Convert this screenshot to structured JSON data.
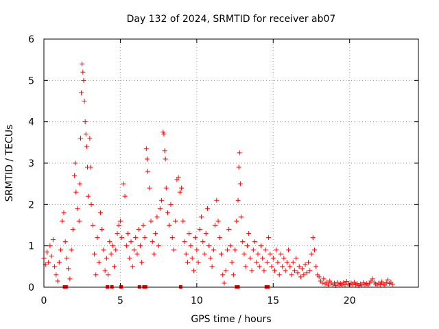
{
  "chart_data": {
    "type": "scatter",
    "title": "Day 132 of 2024, SRMTID for receiver ab07",
    "xlabel": "GPS time / hours",
    "ylabel": "SRMTID / TECUs",
    "xlim": [
      0,
      24.5
    ],
    "ylim": [
      0,
      6
    ],
    "x_ticks": [
      0,
      5,
      10,
      15,
      20
    ],
    "y_ticks": [
      0,
      1,
      2,
      3,
      4,
      5,
      6
    ],
    "grid": true,
    "marker": "+",
    "series": [
      {
        "name": "SRMTID",
        "color": "#ff0000",
        "points": [
          [
            0.0,
            0.7
          ],
          [
            0.1,
            0.55
          ],
          [
            0.2,
            0.85
          ],
          [
            0.3,
            0.6
          ],
          [
            0.4,
            1.0
          ],
          [
            0.5,
            0.75
          ],
          [
            0.6,
            1.15
          ],
          [
            0.7,
            0.5
          ],
          [
            0.8,
            0.3
          ],
          [
            0.9,
            0.15
          ],
          [
            1.0,
            0.6
          ],
          [
            1.1,
            0.9
          ],
          [
            1.2,
            1.6
          ],
          [
            1.3,
            1.8
          ],
          [
            1.4,
            1.1
          ],
          [
            1.5,
            0.7
          ],
          [
            1.6,
            0.45
          ],
          [
            1.7,
            0.2
          ],
          [
            1.8,
            0.9
          ],
          [
            1.9,
            1.4
          ],
          [
            2.0,
            2.7
          ],
          [
            2.05,
            3.0
          ],
          [
            2.1,
            2.3
          ],
          [
            2.2,
            1.9
          ],
          [
            2.3,
            1.6
          ],
          [
            2.35,
            2.5
          ],
          [
            2.4,
            3.6
          ],
          [
            2.45,
            4.7
          ],
          [
            2.5,
            5.4
          ],
          [
            2.55,
            5.2
          ],
          [
            2.6,
            5.0
          ],
          [
            2.65,
            4.5
          ],
          [
            2.7,
            4.0
          ],
          [
            2.75,
            3.7
          ],
          [
            2.8,
            3.4
          ],
          [
            2.85,
            2.9
          ],
          [
            2.9,
            2.2
          ],
          [
            3.0,
            3.6
          ],
          [
            3.05,
            2.9
          ],
          [
            3.1,
            2.0
          ],
          [
            3.2,
            1.5
          ],
          [
            3.3,
            0.8
          ],
          [
            3.4,
            0.3
          ],
          [
            3.5,
            1.2
          ],
          [
            3.6,
            0.6
          ],
          [
            3.7,
            1.8
          ],
          [
            3.8,
            1.4
          ],
          [
            3.9,
            0.9
          ],
          [
            4.0,
            0.4
          ],
          [
            4.1,
            0.7
          ],
          [
            4.2,
            0.3
          ],
          [
            4.3,
            1.1
          ],
          [
            4.4,
            0.8
          ],
          [
            4.5,
            1.0
          ],
          [
            4.6,
            0.5
          ],
          [
            4.7,
            0.9
          ],
          [
            4.8,
            1.3
          ],
          [
            4.9,
            1.5
          ],
          [
            5.0,
            1.6
          ],
          [
            5.1,
            1.2
          ],
          [
            5.2,
            2.5
          ],
          [
            5.3,
            2.2
          ],
          [
            5.4,
            1.0
          ],
          [
            5.5,
            1.3
          ],
          [
            5.6,
            0.7
          ],
          [
            5.7,
            1.1
          ],
          [
            5.8,
            0.5
          ],
          [
            5.9,
            0.9
          ],
          [
            6.0,
            1.2
          ],
          [
            6.1,
            0.8
          ],
          [
            6.2,
            1.4
          ],
          [
            6.3,
            1.0
          ],
          [
            6.4,
            0.6
          ],
          [
            6.5,
            1.5
          ],
          [
            6.6,
            1.2
          ],
          [
            6.7,
            3.35
          ],
          [
            6.75,
            3.1
          ],
          [
            6.8,
            2.8
          ],
          [
            6.9,
            2.4
          ],
          [
            7.0,
            1.6
          ],
          [
            7.1,
            1.1
          ],
          [
            7.2,
            0.8
          ],
          [
            7.3,
            1.3
          ],
          [
            7.4,
            1.7
          ],
          [
            7.5,
            1.0
          ],
          [
            7.6,
            1.9
          ],
          [
            7.7,
            2.1
          ],
          [
            7.8,
            3.75
          ],
          [
            7.85,
            3.7
          ],
          [
            7.9,
            3.3
          ],
          [
            7.95,
            3.1
          ],
          [
            8.0,
            2.4
          ],
          [
            8.1,
            1.8
          ],
          [
            8.2,
            1.5
          ],
          [
            8.3,
            2.0
          ],
          [
            8.4,
            1.2
          ],
          [
            8.5,
            0.9
          ],
          [
            8.6,
            1.6
          ],
          [
            8.7,
            2.6
          ],
          [
            8.8,
            2.65
          ],
          [
            8.9,
            2.3
          ],
          [
            9.0,
            2.4
          ],
          [
            9.1,
            1.6
          ],
          [
            9.2,
            1.1
          ],
          [
            9.3,
            0.8
          ],
          [
            9.4,
            0.6
          ],
          [
            9.5,
            1.3
          ],
          [
            9.6,
            1.0
          ],
          [
            9.7,
            0.7
          ],
          [
            9.8,
            0.4
          ],
          [
            9.9,
            1.2
          ],
          [
            10.0,
            0.9
          ],
          [
            10.1,
            0.6
          ],
          [
            10.2,
            1.4
          ],
          [
            10.3,
            1.7
          ],
          [
            10.4,
            1.1
          ],
          [
            10.5,
            0.8
          ],
          [
            10.6,
            1.3
          ],
          [
            10.7,
            1.9
          ],
          [
            10.8,
            1.0
          ],
          [
            10.9,
            0.7
          ],
          [
            11.0,
            0.5
          ],
          [
            11.1,
            0.9
          ],
          [
            11.2,
            1.5
          ],
          [
            11.3,
            2.1
          ],
          [
            11.4,
            1.6
          ],
          [
            11.5,
            1.2
          ],
          [
            11.6,
            0.8
          ],
          [
            11.7,
            0.3
          ],
          [
            11.8,
            0.1
          ],
          [
            11.9,
            0.4
          ],
          [
            12.0,
            0.9
          ],
          [
            12.1,
            1.4
          ],
          [
            12.2,
            1.0
          ],
          [
            12.3,
            0.6
          ],
          [
            12.4,
            0.3
          ],
          [
            12.5,
            0.9
          ],
          [
            12.6,
            1.6
          ],
          [
            12.7,
            2.1
          ],
          [
            12.75,
            2.9
          ],
          [
            12.8,
            3.25
          ],
          [
            12.85,
            2.5
          ],
          [
            12.9,
            1.7
          ],
          [
            13.0,
            1.1
          ],
          [
            13.1,
            0.8
          ],
          [
            13.2,
            0.5
          ],
          [
            13.3,
            1.0
          ],
          [
            13.4,
            1.3
          ],
          [
            13.5,
            0.7
          ],
          [
            13.6,
            0.4
          ],
          [
            13.7,
            0.9
          ],
          [
            13.8,
            1.1
          ],
          [
            13.9,
            0.6
          ],
          [
            14.0,
            0.8
          ],
          [
            14.1,
            0.5
          ],
          [
            14.2,
            1.0
          ],
          [
            14.3,
            0.7
          ],
          [
            14.4,
            0.4
          ],
          [
            14.5,
            0.9
          ],
          [
            14.6,
            0.6
          ],
          [
            14.7,
            1.2
          ],
          [
            14.8,
            0.8
          ],
          [
            14.9,
            0.5
          ],
          [
            15.0,
            0.7
          ],
          [
            15.1,
            0.4
          ],
          [
            15.2,
            0.9
          ],
          [
            15.3,
            0.6
          ],
          [
            15.4,
            0.3
          ],
          [
            15.5,
            0.8
          ],
          [
            15.6,
            0.5
          ],
          [
            15.7,
            0.7
          ],
          [
            15.8,
            0.4
          ],
          [
            15.9,
            0.6
          ],
          [
            16.0,
            0.9
          ],
          [
            16.1,
            0.5
          ],
          [
            16.2,
            0.3
          ],
          [
            16.3,
            0.6
          ],
          [
            16.4,
            0.4
          ],
          [
            16.5,
            0.7
          ],
          [
            16.6,
            0.35
          ],
          [
            16.7,
            0.5
          ],
          [
            16.8,
            0.25
          ],
          [
            16.9,
            0.45
          ],
          [
            17.0,
            0.3
          ],
          [
            17.1,
            0.55
          ],
          [
            17.2,
            0.35
          ],
          [
            17.3,
            0.6
          ],
          [
            17.4,
            0.4
          ],
          [
            17.5,
            0.8
          ],
          [
            17.6,
            1.2
          ],
          [
            17.7,
            0.9
          ],
          [
            17.8,
            0.5
          ],
          [
            17.9,
            0.3
          ],
          [
            18.0,
            0.25
          ],
          [
            18.1,
            0.15
          ],
          [
            18.2,
            0.1
          ],
          [
            18.3,
            0.2
          ],
          [
            18.4,
            0.08
          ],
          [
            18.5,
            0.12
          ],
          [
            18.6,
            0.05
          ],
          [
            18.7,
            0.15
          ],
          [
            18.8,
            0.1
          ],
          [
            18.9,
            0.06
          ],
          [
            19.0,
            0.1
          ],
          [
            19.1,
            0.04
          ],
          [
            19.2,
            0.12
          ],
          [
            19.3,
            0.07
          ],
          [
            19.4,
            0.09
          ],
          [
            19.5,
            0.05
          ],
          [
            19.6,
            0.11
          ],
          [
            19.7,
            0.06
          ],
          [
            19.8,
            0.14
          ],
          [
            19.9,
            0.08
          ],
          [
            20.0,
            0.05
          ],
          [
            20.1,
            0.1
          ],
          [
            20.2,
            0.07
          ],
          [
            20.3,
            0.12
          ],
          [
            20.4,
            0.06
          ],
          [
            20.5,
            0.09
          ],
          [
            20.6,
            0.04
          ],
          [
            20.7,
            0.08
          ],
          [
            20.8,
            0.05
          ],
          [
            20.9,
            0.11
          ],
          [
            21.0,
            0.06
          ],
          [
            21.1,
            0.09
          ],
          [
            21.2,
            0.05
          ],
          [
            21.3,
            0.1
          ],
          [
            21.4,
            0.15
          ],
          [
            21.5,
            0.2
          ],
          [
            21.6,
            0.12
          ],
          [
            21.7,
            0.08
          ],
          [
            21.8,
            0.05
          ],
          [
            21.9,
            0.1
          ],
          [
            22.0,
            0.06
          ],
          [
            22.1,
            0.13
          ],
          [
            22.2,
            0.08
          ],
          [
            22.3,
            0.05
          ],
          [
            22.4,
            0.11
          ],
          [
            22.5,
            0.18
          ],
          [
            22.6,
            0.09
          ],
          [
            22.7,
            0.12
          ],
          [
            22.8,
            0.07
          ]
        ]
      },
      {
        "name": "zero-value markers",
        "color": "#ff0000",
        "marker": "square",
        "points": [
          [
            1.35,
            0
          ],
          [
            1.45,
            0
          ],
          [
            4.15,
            0
          ],
          [
            4.45,
            0
          ],
          [
            5.05,
            0
          ],
          [
            6.25,
            0
          ],
          [
            6.55,
            0
          ],
          [
            6.65,
            0
          ],
          [
            8.95,
            0
          ],
          [
            12.6,
            0
          ],
          [
            12.7,
            0
          ],
          [
            14.55,
            0
          ],
          [
            14.65,
            0
          ]
        ]
      }
    ]
  }
}
